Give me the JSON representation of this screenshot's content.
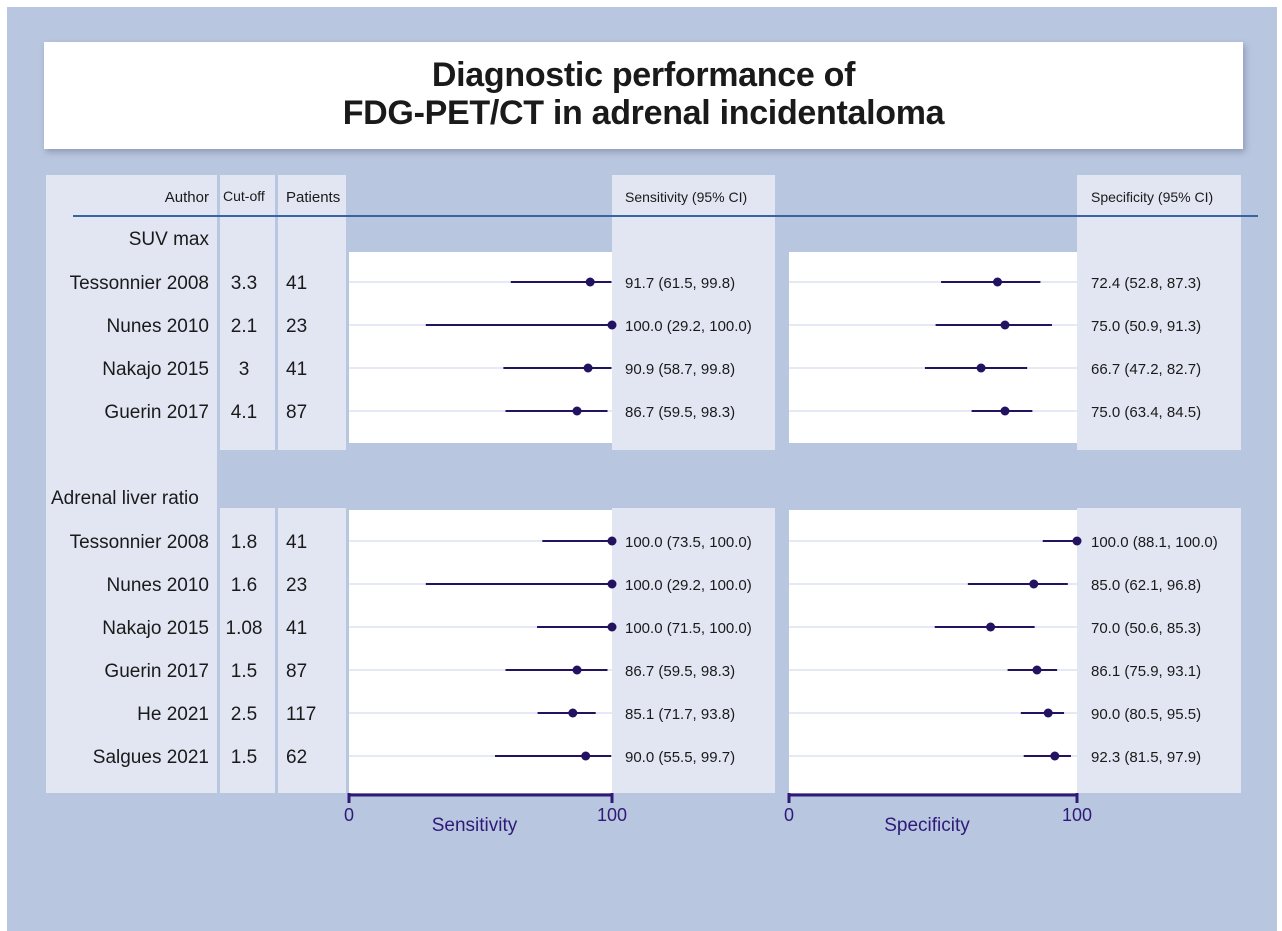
{
  "title": {
    "line1": "Diagnostic performance of",
    "line2": "FDG-PET/CT in adrenal incidentaloma"
  },
  "columns": {
    "author": "Author",
    "cutoff": "Cut-off",
    "patients": "Patients",
    "sensitivity": "Sensitivity (95% CI)",
    "specificity": "Specificity (95% CI)"
  },
  "axes": {
    "sensitivity": {
      "label": "Sensitivity",
      "range": [
        0,
        100
      ],
      "ticks": [
        "0",
        "100"
      ]
    },
    "specificity": {
      "label": "Specificity",
      "range": [
        0,
        100
      ],
      "ticks": [
        "0",
        "100"
      ]
    }
  },
  "colors": {
    "background": "#b9c6df",
    "column_shade": "#e1e6f2",
    "plot_area": "#ffffff",
    "marker": "#22125f",
    "axis": "#2e1a78",
    "header_rule": "#3a63a4"
  },
  "chart_data": {
    "type": "forest",
    "groups": [
      {
        "name": "SUV max",
        "studies": [
          {
            "author": "Tessonnier 2008",
            "cutoff": "3.3",
            "patients": "41",
            "sens": 91.7,
            "sens_lo": 61.5,
            "sens_hi": 99.8,
            "sens_text": "91.7 (61.5, 99.8)",
            "spec": 72.4,
            "spec_lo": 52.8,
            "spec_hi": 87.3,
            "spec_text": "72.4 (52.8, 87.3)"
          },
          {
            "author": "Nunes 2010",
            "cutoff": "2.1",
            "patients": "23",
            "sens": 100.0,
            "sens_lo": 29.2,
            "sens_hi": 100.0,
            "sens_text": "100.0 (29.2, 100.0)",
            "spec": 75.0,
            "spec_lo": 50.9,
            "spec_hi": 91.3,
            "spec_text": "75.0 (50.9, 91.3)"
          },
          {
            "author": "Nakajo 2015",
            "cutoff": "3",
            "patients": "41",
            "sens": 90.9,
            "sens_lo": 58.7,
            "sens_hi": 99.8,
            "sens_text": "90.9 (58.7, 99.8)",
            "spec": 66.7,
            "spec_lo": 47.2,
            "spec_hi": 82.7,
            "spec_text": "66.7 (47.2, 82.7)"
          },
          {
            "author": "Guerin 2017",
            "cutoff": "4.1",
            "patients": "87",
            "sens": 86.7,
            "sens_lo": 59.5,
            "sens_hi": 98.3,
            "sens_text": "86.7 (59.5, 98.3)",
            "spec": 75.0,
            "spec_lo": 63.4,
            "spec_hi": 84.5,
            "spec_text": "75.0 (63.4, 84.5)"
          }
        ]
      },
      {
        "name": "Adrenal liver ratio",
        "studies": [
          {
            "author": "Tessonnier 2008",
            "cutoff": "1.8",
            "patients": "41",
            "sens": 100.0,
            "sens_lo": 73.5,
            "sens_hi": 100.0,
            "sens_text": "100.0 (73.5, 100.0)",
            "spec": 100.0,
            "spec_lo": 88.1,
            "spec_hi": 100.0,
            "spec_text": "100.0 (88.1, 100.0)"
          },
          {
            "author": "Nunes 2010",
            "cutoff": "1.6",
            "patients": "23",
            "sens": 100.0,
            "sens_lo": 29.2,
            "sens_hi": 100.0,
            "sens_text": "100.0 (29.2, 100.0)",
            "spec": 85.0,
            "spec_lo": 62.1,
            "spec_hi": 96.8,
            "spec_text": "85.0 (62.1, 96.8)"
          },
          {
            "author": "Nakajo 2015",
            "cutoff": "1.08",
            "patients": "41",
            "sens": 100.0,
            "sens_lo": 71.5,
            "sens_hi": 100.0,
            "sens_text": "100.0 (71.5, 100.0)",
            "spec": 70.0,
            "spec_lo": 50.6,
            "spec_hi": 85.3,
            "spec_text": "70.0 (50.6, 85.3)"
          },
          {
            "author": "Guerin 2017",
            "cutoff": "1.5",
            "patients": "87",
            "sens": 86.7,
            "sens_lo": 59.5,
            "sens_hi": 98.3,
            "sens_text": "86.7 (59.5, 98.3)",
            "spec": 86.1,
            "spec_lo": 75.9,
            "spec_hi": 93.1,
            "spec_text": "86.1 (75.9, 93.1)"
          },
          {
            "author": "He 2021",
            "cutoff": "2.5",
            "patients": "117",
            "sens": 85.1,
            "sens_lo": 71.7,
            "sens_hi": 93.8,
            "sens_text": "85.1 (71.7, 93.8)",
            "spec": 90.0,
            "spec_lo": 80.5,
            "spec_hi": 95.5,
            "spec_text": "90.0 (80.5, 95.5)"
          },
          {
            "author": "Salgues 2021",
            "cutoff": "1.5",
            "patients": "62",
            "sens": 90.0,
            "sens_lo": 55.5,
            "sens_hi": 99.7,
            "sens_text": "90.0 (55.5, 99.7)",
            "spec": 92.3,
            "spec_lo": 81.5,
            "spec_hi": 97.9,
            "spec_text": "92.3 (81.5, 97.9)"
          }
        ]
      }
    ]
  }
}
